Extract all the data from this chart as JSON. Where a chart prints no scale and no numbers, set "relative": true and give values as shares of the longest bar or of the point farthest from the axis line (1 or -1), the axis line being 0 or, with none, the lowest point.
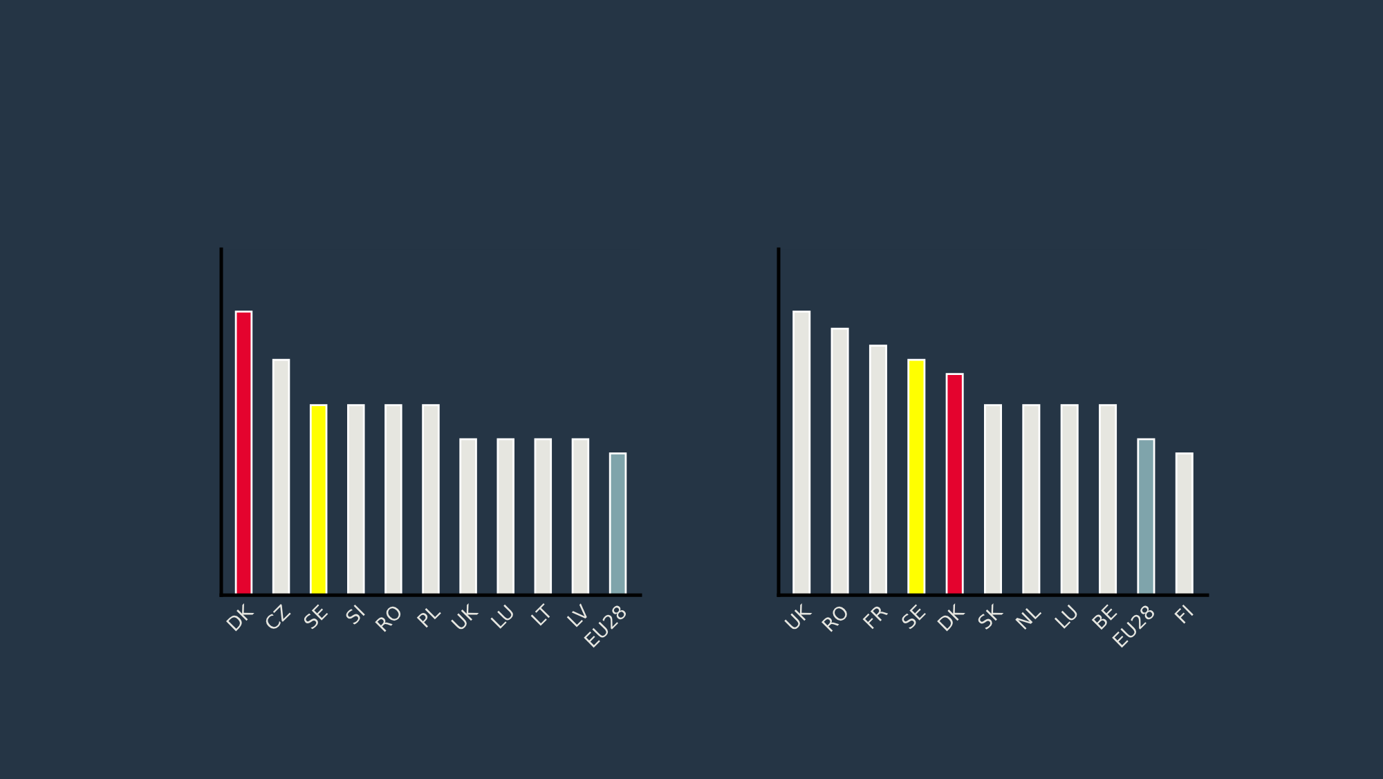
{
  "chart_data": [
    {
      "type": "bar",
      "relative": true,
      "categories": [
        "DK",
        "CZ",
        "SE",
        "SI",
        "RO",
        "PL",
        "UK",
        "LU",
        "LT",
        "LV",
        "EU28"
      ],
      "values": [
        1,
        0.83,
        0.67,
        0.67,
        0.67,
        0.67,
        0.55,
        0.55,
        0.55,
        0.55,
        0.5
      ],
      "colors": [
        "#e4032e",
        "#e6e6e0",
        "#ffff00",
        "#e6e6e0",
        "#e6e6e0",
        "#e6e6e0",
        "#e6e6e0",
        "#e6e6e0",
        "#e6e6e0",
        "#e6e6e0",
        "#7fa4ab"
      ]
    },
    {
      "type": "bar",
      "relative": true,
      "categories": [
        "UK",
        "RO",
        "FR",
        "SE",
        "DK",
        "SK",
        "NL",
        "LU",
        "BE",
        "EU28",
        "FI"
      ],
      "values": [
        1,
        0.94,
        0.88,
        0.83,
        0.78,
        0.67,
        0.67,
        0.67,
        0.67,
        0.55,
        0.5
      ],
      "colors": [
        "#e6e6e0",
        "#e6e6e0",
        "#e6e6e0",
        "#ffff00",
        "#e4032e",
        "#e6e6e0",
        "#e6e6e0",
        "#e6e6e0",
        "#e6e6e0",
        "#7fa4ab",
        "#e6e6e0"
      ]
    }
  ]
}
